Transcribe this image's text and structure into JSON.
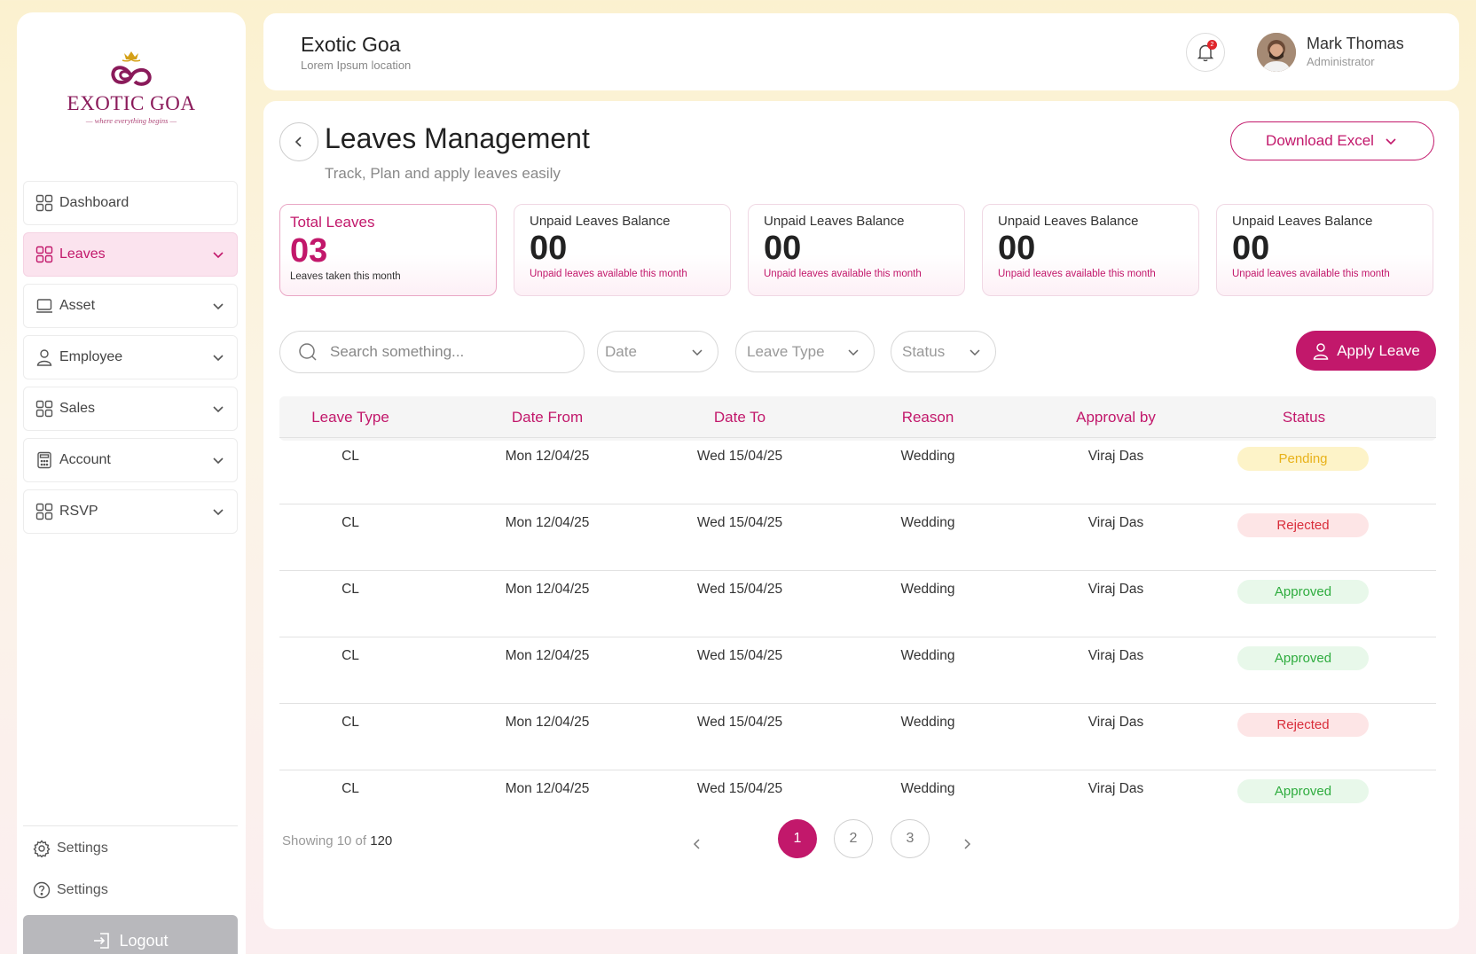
{
  "brand": {
    "logo_text": "EXOTIC GOA",
    "logo_tagline": "— where everything begins —",
    "accent_color": "#c2186b"
  },
  "sidebar": {
    "items": [
      {
        "label": "Dashboard",
        "icon": "grid-icon",
        "has_chevron": false,
        "active": false
      },
      {
        "label": "Leaves",
        "icon": "grid-icon",
        "has_chevron": true,
        "active": true
      },
      {
        "label": "Asset",
        "icon": "laptop-icon",
        "has_chevron": true,
        "active": false
      },
      {
        "label": "Employee",
        "icon": "user-icon",
        "has_chevron": true,
        "active": false
      },
      {
        "label": "Sales",
        "icon": "grid-icon",
        "has_chevron": true,
        "active": false
      },
      {
        "label": "Account",
        "icon": "calculator-icon",
        "has_chevron": true,
        "active": false
      },
      {
        "label": "RSVP",
        "icon": "grid-icon",
        "has_chevron": true,
        "active": false
      }
    ],
    "bottom_links": [
      {
        "label": "Settings",
        "icon": "gear-icon"
      },
      {
        "label": "Settings",
        "icon": "help-icon"
      }
    ],
    "logout_label": "Logout"
  },
  "header": {
    "company_name": "Exotic Goa",
    "company_location": "Lorem Ipsum location",
    "notification_count": "2",
    "user_name": "Mark Thomas",
    "user_role": "Administrator"
  },
  "page": {
    "title": "Leaves Management",
    "subtitle": "Track, Plan  and apply leaves easily",
    "download_label": "Download Excel"
  },
  "stats": [
    {
      "title": "Total Leaves",
      "value": "03",
      "sub": "Leaves taken this month"
    },
    {
      "title": "Unpaid Leaves Balance",
      "value": "00",
      "sub": "Unpaid leaves available this month"
    },
    {
      "title": "Unpaid Leaves Balance",
      "value": "00",
      "sub": "Unpaid leaves available this month"
    },
    {
      "title": "Unpaid Leaves Balance",
      "value": "00",
      "sub": "Unpaid leaves available this month"
    },
    {
      "title": "Unpaid Leaves Balance",
      "value": "00",
      "sub": "Unpaid leaves available this month"
    }
  ],
  "filters": {
    "search_placeholder": "Search something...",
    "date_label": "Date",
    "leave_type_label": "Leave Type",
    "status_label": "Status",
    "apply_label": "Apply Leave"
  },
  "table": {
    "headers": [
      "Leave Type",
      "Date From",
      "Date To",
      "Reason",
      "Approval by",
      "Status"
    ],
    "rows": [
      {
        "leave_type": "CL",
        "date_from": "Mon 12/04/25",
        "date_to": "Wed 15/04/25",
        "reason": "Wedding",
        "approval_by": "Viraj Das",
        "status": "Pending"
      },
      {
        "leave_type": "CL",
        "date_from": "Mon 12/04/25",
        "date_to": "Wed 15/04/25",
        "reason": "Wedding",
        "approval_by": "Viraj Das",
        "status": "Rejected"
      },
      {
        "leave_type": "CL",
        "date_from": "Mon 12/04/25",
        "date_to": "Wed 15/04/25",
        "reason": "Wedding",
        "approval_by": "Viraj Das",
        "status": "Approved"
      },
      {
        "leave_type": "CL",
        "date_from": "Mon 12/04/25",
        "date_to": "Wed 15/04/25",
        "reason": "Wedding",
        "approval_by": "Viraj Das",
        "status": "Approved"
      },
      {
        "leave_type": "CL",
        "date_from": "Mon 12/04/25",
        "date_to": "Wed 15/04/25",
        "reason": "Wedding",
        "approval_by": "Viraj Das",
        "status": "Rejected"
      },
      {
        "leave_type": "CL",
        "date_from": "Mon 12/04/25",
        "date_to": "Wed 15/04/25",
        "reason": "Wedding",
        "approval_by": "Viraj Das",
        "status": "Approved"
      }
    ],
    "status_colors": {
      "Pending": {
        "bg": "#fdf3c8",
        "fg": "#e8b21a"
      },
      "Rejected": {
        "bg": "#fde5e6",
        "fg": "#d92d3a"
      },
      "Approved": {
        "bg": "#e8f8ea",
        "fg": "#2eac3e"
      }
    }
  },
  "pagination": {
    "showing_prefix": "Showing 10 of",
    "total": "120",
    "pages": [
      "1",
      "2",
      "3"
    ],
    "current": "1"
  }
}
